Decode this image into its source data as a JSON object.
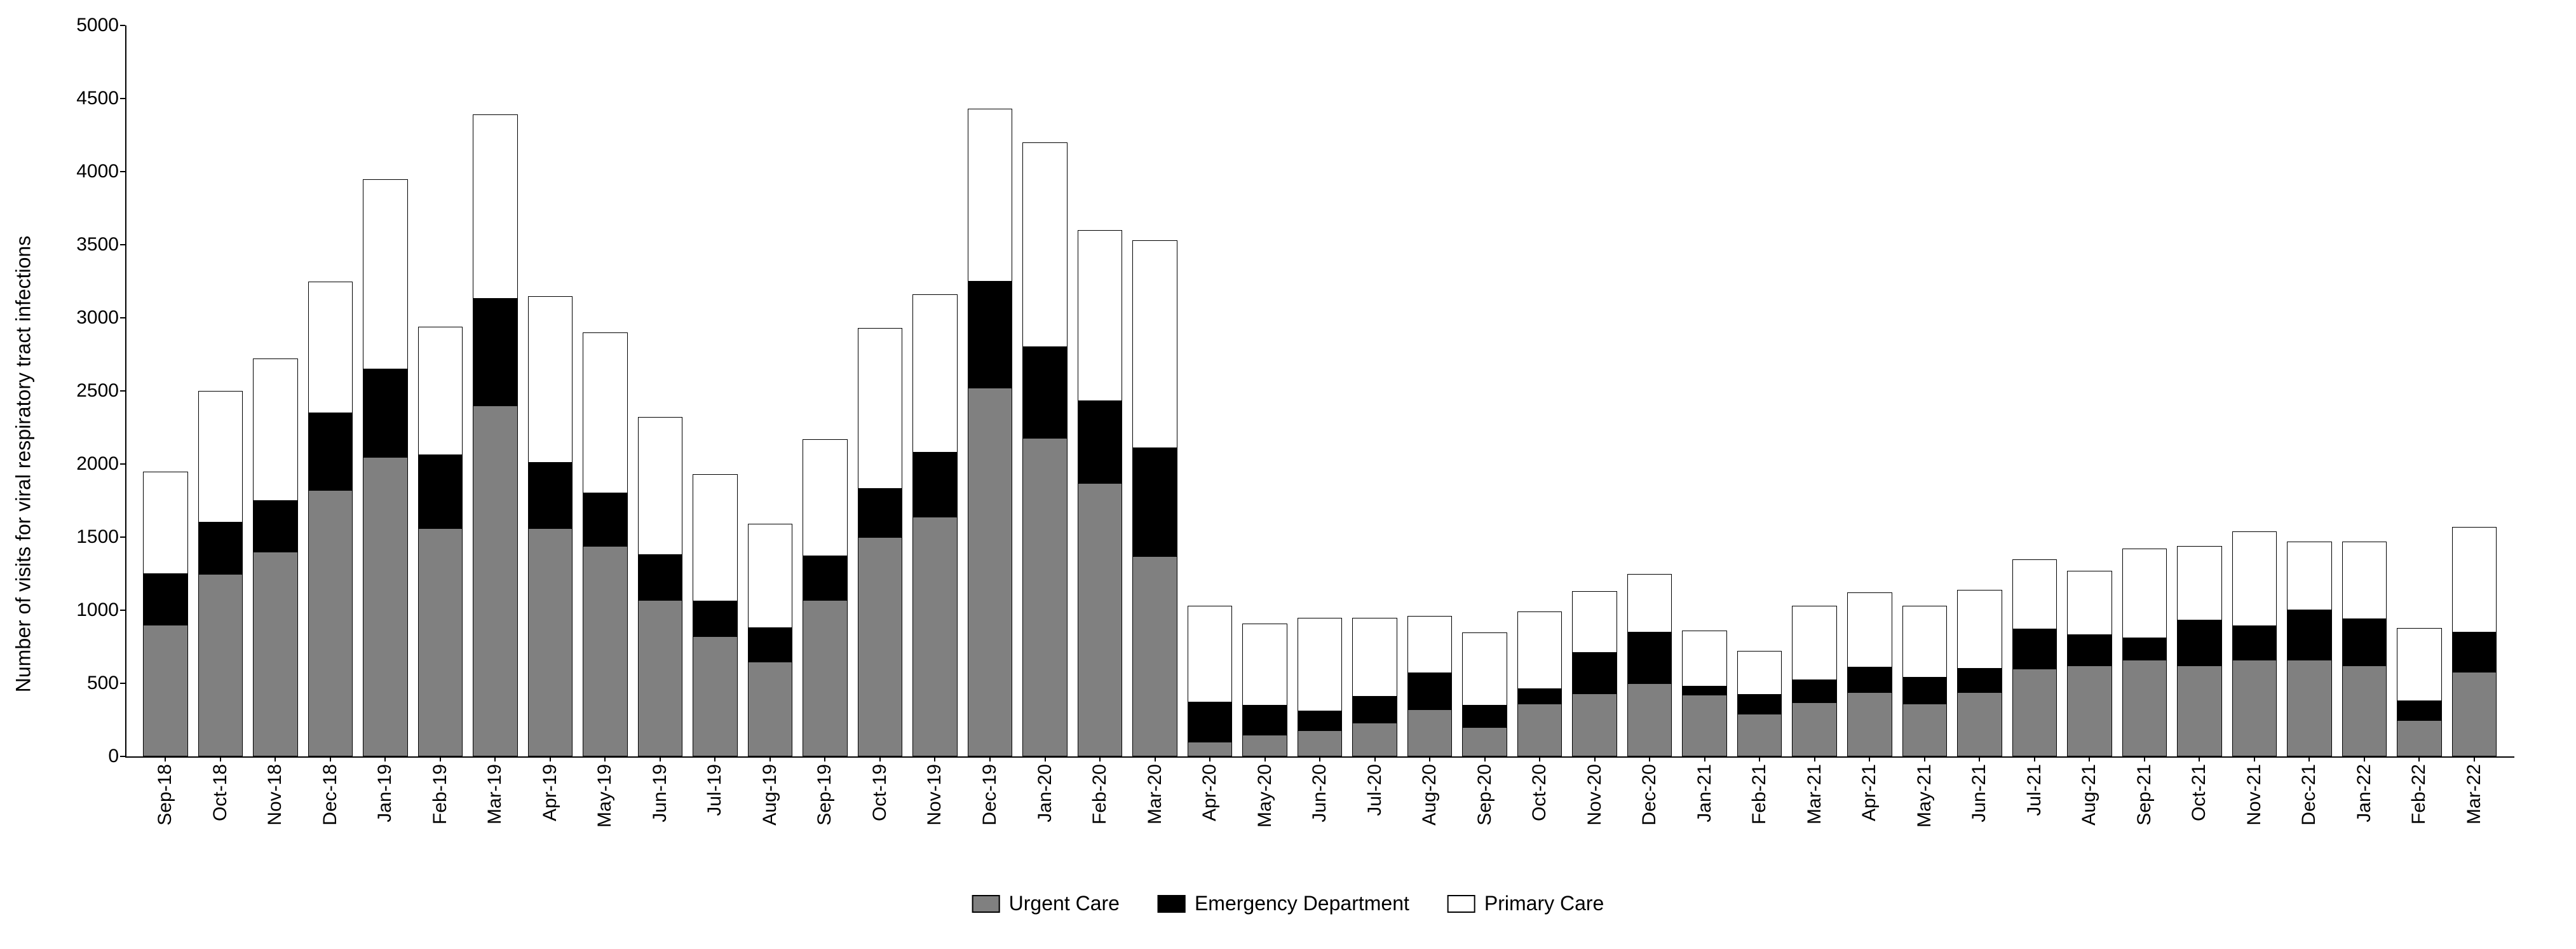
{
  "chart": {
    "type": "stacked-bar",
    "y_axis_label": "Number of visits for viral respiratory tract infections",
    "ylim": [
      0,
      5000
    ],
    "ytick_step": 500,
    "yticks": [
      0,
      500,
      1000,
      1500,
      2000,
      2500,
      3000,
      3500,
      4000,
      4500,
      5000
    ],
    "background_color": "#ffffff",
    "axis_color": "#000000",
    "label_fontsize": 32,
    "tick_fontsize": 30,
    "bar_border_color": "#000000",
    "bar_border_width": 1,
    "series": [
      {
        "name": "Urgent Care",
        "color": "#808080",
        "border": "#000000"
      },
      {
        "name": "Emergency Department",
        "color": "#000000",
        "border": "#000000"
      },
      {
        "name": "Primary Care",
        "color": "#ffffff",
        "border": "#000000"
      }
    ],
    "categories": [
      "Sep-18",
      "Oct-18",
      "Nov-18",
      "Dec-18",
      "Jan-19",
      "Feb-19",
      "Mar-19",
      "Apr-19",
      "May-19",
      "Jun-19",
      "Jul-19",
      "Aug-19",
      "Sep-19",
      "Oct-19",
      "Nov-19",
      "Dec-19",
      "Jan-20",
      "Feb-20",
      "Mar-20",
      "Apr-20",
      "May-20",
      "Jun-20",
      "Jul-20",
      "Aug-20",
      "Sep-20",
      "Oct-20",
      "Nov-20",
      "Dec-20",
      "Jan-21",
      "Feb-21",
      "Mar-21",
      "Apr-21",
      "May-21",
      "Jun-21",
      "Jul-21",
      "Aug-21",
      "Sep-21",
      "Oct-21",
      "Nov-21",
      "Dec-21",
      "Jan-22",
      "Feb-22",
      "Mar-22"
    ],
    "data": [
      {
        "urgent": 900,
        "emergency": 350,
        "primary": 700
      },
      {
        "urgent": 1250,
        "emergency": 350,
        "primary": 900
      },
      {
        "urgent": 1400,
        "emergency": 350,
        "primary": 970
      },
      {
        "urgent": 1820,
        "emergency": 530,
        "primary": 900
      },
      {
        "urgent": 2050,
        "emergency": 600,
        "primary": 1300
      },
      {
        "urgent": 1560,
        "emergency": 500,
        "primary": 880
      },
      {
        "urgent": 2400,
        "emergency": 730,
        "primary": 1260
      },
      {
        "urgent": 1560,
        "emergency": 450,
        "primary": 1140
      },
      {
        "urgent": 1440,
        "emergency": 360,
        "primary": 1100
      },
      {
        "urgent": 1070,
        "emergency": 310,
        "primary": 940
      },
      {
        "urgent": 820,
        "emergency": 240,
        "primary": 870
      },
      {
        "urgent": 650,
        "emergency": 230,
        "primary": 710
      },
      {
        "urgent": 1070,
        "emergency": 300,
        "primary": 800
      },
      {
        "urgent": 1500,
        "emergency": 330,
        "primary": 1100
      },
      {
        "urgent": 1640,
        "emergency": 440,
        "primary": 1080
      },
      {
        "urgent": 2520,
        "emergency": 730,
        "primary": 1180
      },
      {
        "urgent": 2180,
        "emergency": 620,
        "primary": 1400
      },
      {
        "urgent": 1870,
        "emergency": 560,
        "primary": 1170
      },
      {
        "urgent": 1370,
        "emergency": 740,
        "primary": 1420
      },
      {
        "urgent": 100,
        "emergency": 270,
        "primary": 660
      },
      {
        "urgent": 150,
        "emergency": 200,
        "primary": 560
      },
      {
        "urgent": 180,
        "emergency": 130,
        "primary": 640
      },
      {
        "urgent": 230,
        "emergency": 180,
        "primary": 540
      },
      {
        "urgent": 320,
        "emergency": 250,
        "primary": 390
      },
      {
        "urgent": 200,
        "emergency": 150,
        "primary": 500
      },
      {
        "urgent": 360,
        "emergency": 100,
        "primary": 530
      },
      {
        "urgent": 430,
        "emergency": 280,
        "primary": 420
      },
      {
        "urgent": 500,
        "emergency": 350,
        "primary": 400
      },
      {
        "urgent": 420,
        "emergency": 60,
        "primary": 380
      },
      {
        "urgent": 290,
        "emergency": 130,
        "primary": 300
      },
      {
        "urgent": 370,
        "emergency": 150,
        "primary": 510
      },
      {
        "urgent": 440,
        "emergency": 170,
        "primary": 510
      },
      {
        "urgent": 360,
        "emergency": 180,
        "primary": 490
      },
      {
        "urgent": 440,
        "emergency": 160,
        "primary": 540
      },
      {
        "urgent": 600,
        "emergency": 270,
        "primary": 480
      },
      {
        "urgent": 620,
        "emergency": 210,
        "primary": 440
      },
      {
        "urgent": 660,
        "emergency": 150,
        "primary": 610
      },
      {
        "urgent": 620,
        "emergency": 310,
        "primary": 510
      },
      {
        "urgent": 660,
        "emergency": 230,
        "primary": 650
      },
      {
        "urgent": 660,
        "emergency": 340,
        "primary": 470
      },
      {
        "urgent": 620,
        "emergency": 320,
        "primary": 530
      },
      {
        "urgent": 250,
        "emergency": 130,
        "primary": 500
      },
      {
        "urgent": 580,
        "emergency": 270,
        "primary": 720
      }
    ],
    "legend_position": "bottom-center"
  }
}
